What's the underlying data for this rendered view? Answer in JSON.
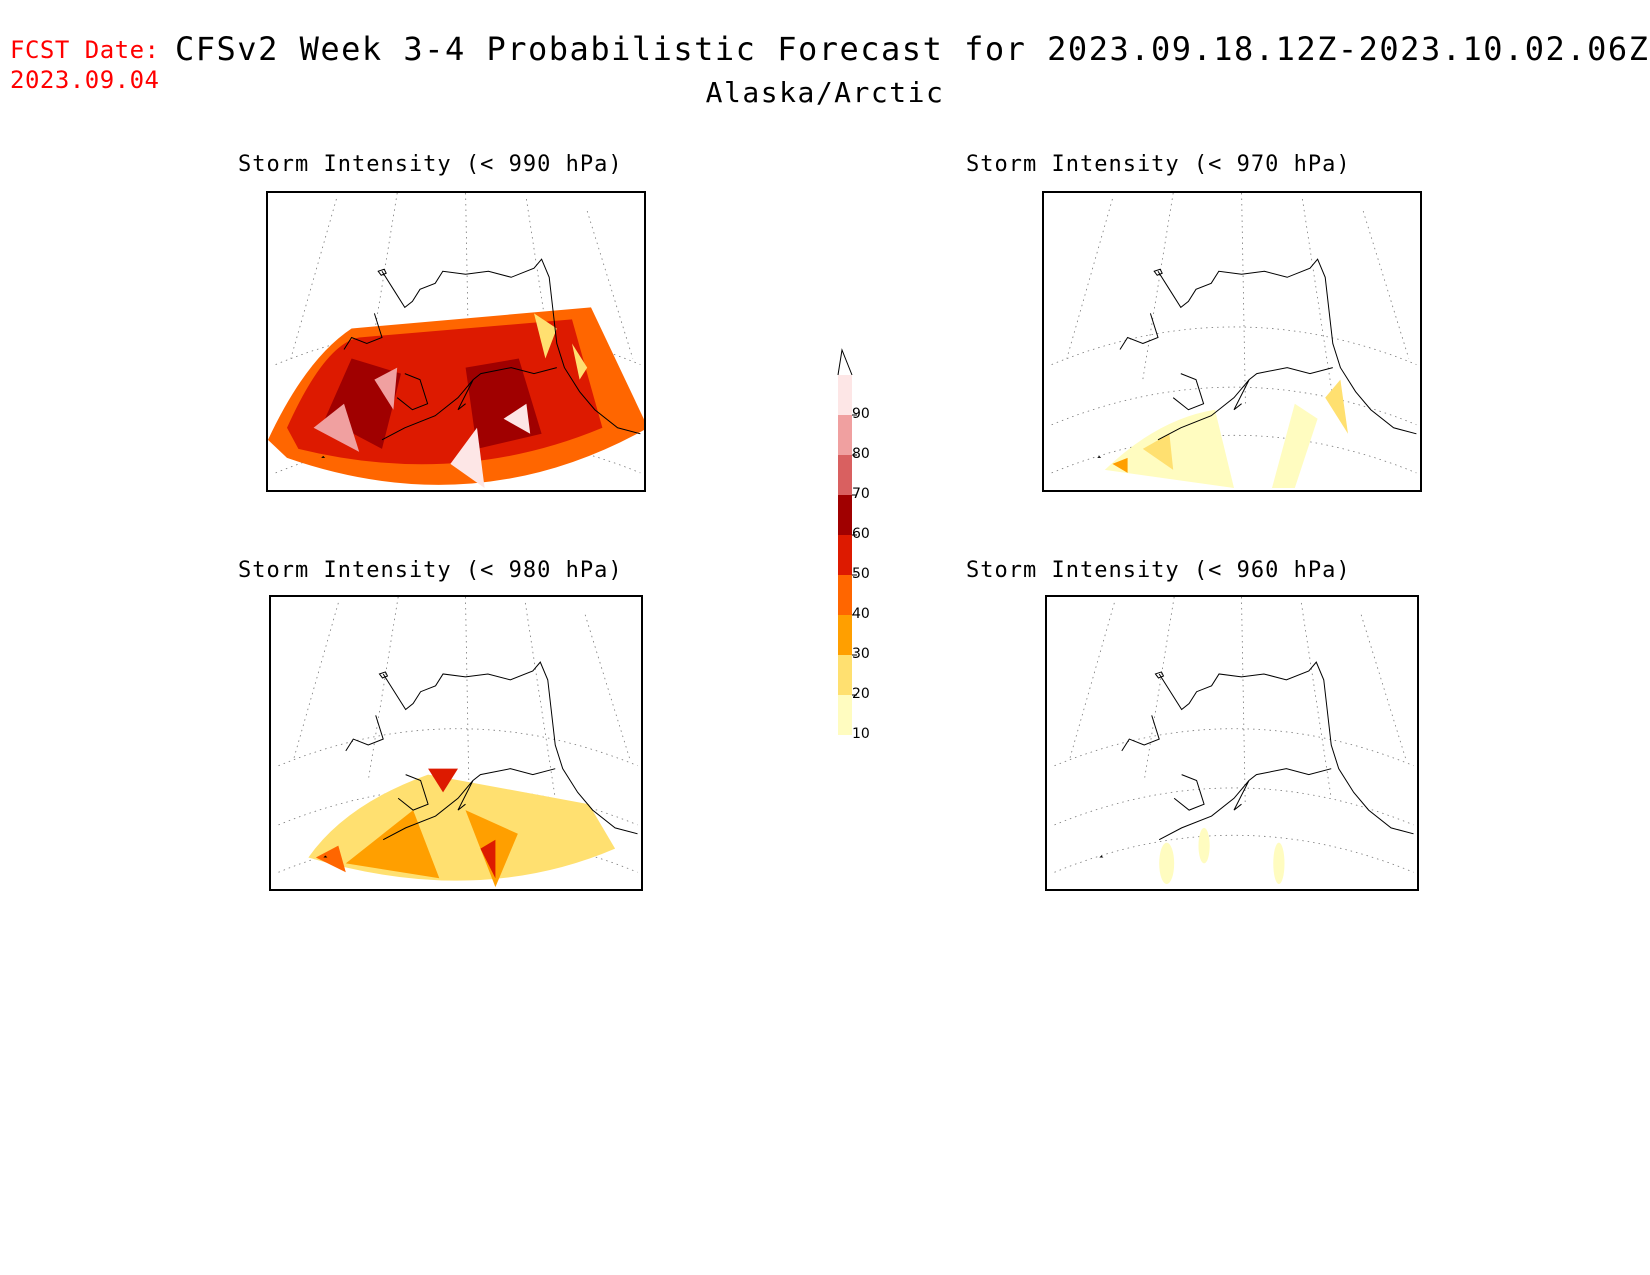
{
  "header": {
    "fcst_label": "FCST Date:",
    "fcst_date": "2023.09.04",
    "title": "CFSv2 Week 3-4 Probabilistic Forecast for 2023.09.18.12Z-2023.10.02.06Z",
    "subtitle": "Alaska/Arctic"
  },
  "panels": [
    {
      "title": "Storm Intensity (< 990 hPa)",
      "intensity": "high"
    },
    {
      "title": "Storm Intensity (< 970 hPa)",
      "intensity": "low"
    },
    {
      "title": "Storm Intensity (< 980 hPa)",
      "intensity": "medium"
    },
    {
      "title": "Storm Intensity (< 960 hPa)",
      "intensity": "minimal"
    }
  ],
  "colorbar": {
    "labels": [
      "90",
      "80",
      "70",
      "60",
      "50",
      "40",
      "30",
      "20",
      "10"
    ],
    "colors": [
      "#fde6e6",
      "#f0a0a0",
      "#d96060",
      "#a00000",
      "#dd1a00",
      "#ff6600",
      "#ff9f00",
      "#ffe070",
      "#fffcc0"
    ]
  }
}
